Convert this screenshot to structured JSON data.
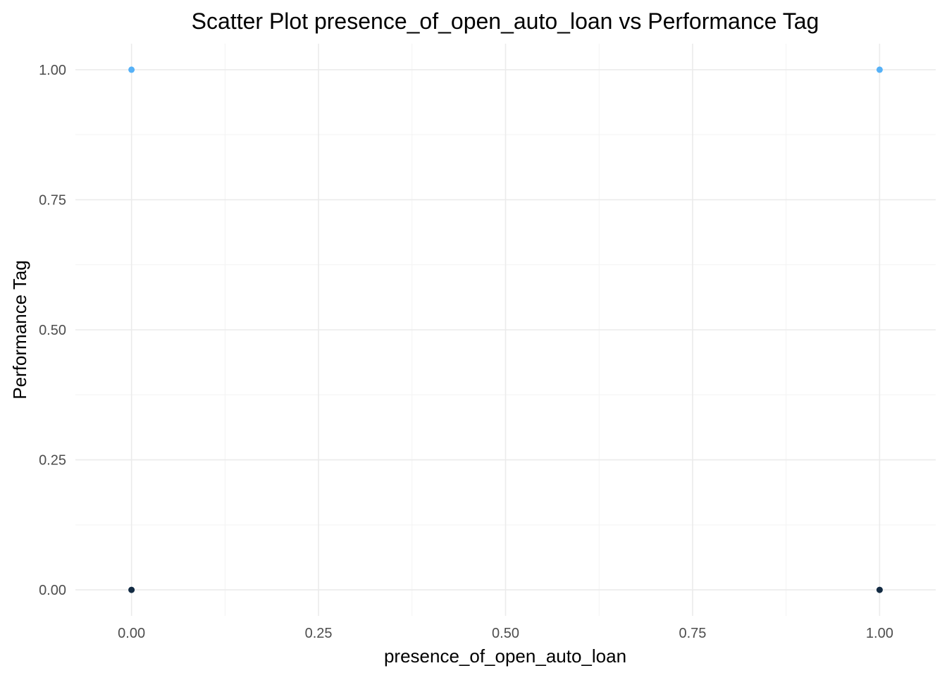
{
  "chart_data": {
    "type": "scatter",
    "title": "Scatter Plot presence_of_open_auto_loan vs Performance Tag",
    "xlabel": "presence_of_open_auto_loan",
    "ylabel": "Performance Tag",
    "xlim": [
      -0.075,
      1.075
    ],
    "ylim": [
      -0.05,
      1.05
    ],
    "x_ticks": [
      0,
      0.25,
      0.5,
      0.75,
      1
    ],
    "x_tick_labels": [
      "0.00",
      "0.25",
      "0.50",
      "0.75",
      "1.00"
    ],
    "y_ticks": [
      0,
      0.25,
      0.5,
      0.75,
      1
    ],
    "y_tick_labels": [
      "0.00",
      "0.25",
      "0.50",
      "0.75",
      "1.00"
    ],
    "grid": true,
    "legend": "none",
    "points": [
      {
        "x": 0,
        "y": 1,
        "color": "#56B1F7"
      },
      {
        "x": 1,
        "y": 1,
        "color": "#56B1F7"
      },
      {
        "x": 0,
        "y": 0,
        "color": "#132B43"
      },
      {
        "x": 1,
        "y": 0,
        "color": "#132B43"
      }
    ]
  }
}
